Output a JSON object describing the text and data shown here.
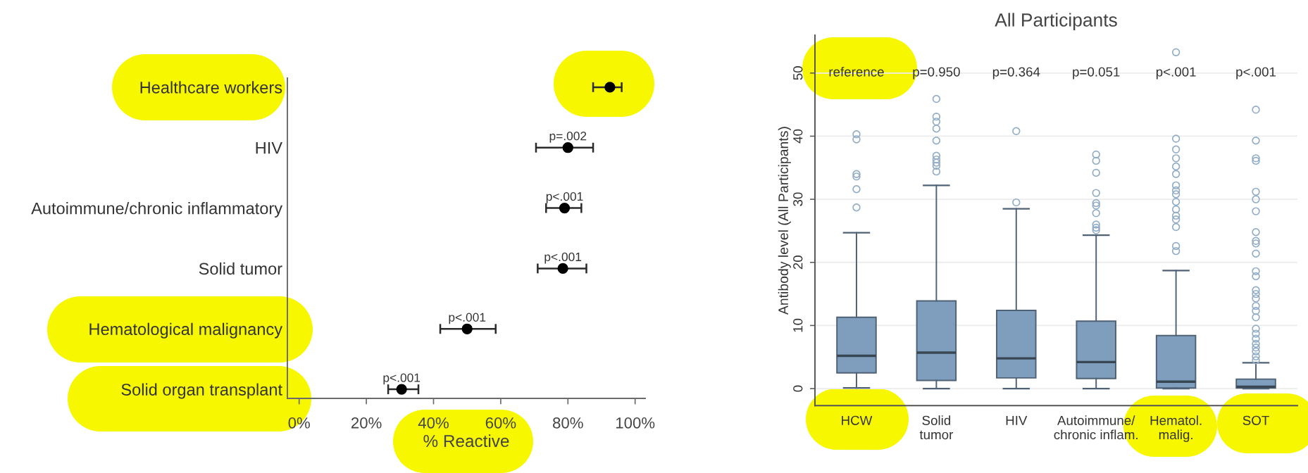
{
  "chart_data": [
    {
      "type": "scatter",
      "orientation": "horizontal",
      "categories": [
        "Healthcare workers",
        "HIV",
        "Autoimmune/chronic inflammatory",
        "Solid tumor",
        "Hematological malignancy",
        "Solid organ transplant"
      ],
      "values": [
        92.5,
        80,
        79,
        78.5,
        50,
        30.5
      ],
      "errors": [
        [
          87.5,
          96
        ],
        [
          70.5,
          87.5
        ],
        [
          73.5,
          84
        ],
        [
          71,
          85.5
        ],
        [
          42,
          58.5
        ],
        [
          26.5,
          35.5
        ]
      ],
      "color": "#000000",
      "marker": "circle",
      "xlabel": "% Reactive",
      "xlim": [
        -3.5,
        103
      ],
      "xticks": [
        {
          "value": 0,
          "label": "0%"
        },
        {
          "value": 20,
          "label": "20%"
        },
        {
          "value": 40,
          "label": "40%"
        },
        {
          "value": 60,
          "label": "60%"
        },
        {
          "value": 80,
          "label": "80%"
        },
        {
          "value": 100,
          "label": "100%"
        }
      ],
      "annotations": [
        {
          "text": "p=.002",
          "x": 80,
          "y": "HIV"
        },
        {
          "text": "p<.001",
          "x": 79,
          "y": "Autoimmune/chronic inflammatory"
        },
        {
          "text": "p<.001",
          "x": 78.5,
          "y": "Solid tumor"
        },
        {
          "text": "p<.001",
          "x": 50,
          "y": "Hematological malignancy"
        },
        {
          "text": "p<.001",
          "x": 30.5,
          "y": "Solid organ transplant"
        }
      ]
    },
    {
      "type": "box",
      "title": "All Participants",
      "ylabel": "Antibody level (All Participants)",
      "categories": [
        "HCW",
        "Solid\ntumor",
        "HIV",
        "Autoimmune/\nchronic inflam.",
        "Hematol.\nmalig.",
        "SOT"
      ],
      "boxes": [
        {
          "low": 0.1,
          "q1": 2.5,
          "median": 5.2,
          "q3": 11.3,
          "high": 24.7,
          "outliers": [
            40.3,
            39.5,
            34.0,
            33.6,
            31.6,
            28.7
          ]
        },
        {
          "low": 0,
          "q1": 1.3,
          "median": 5.7,
          "q3": 13.9,
          "high": 32.2,
          "outliers": [
            45.9,
            43.1,
            42.3,
            41.2,
            39.3,
            36.9,
            36.3,
            35.8,
            35.3,
            34.4
          ]
        },
        {
          "low": 0,
          "q1": 1.7,
          "median": 4.8,
          "q3": 12.4,
          "high": 28.5,
          "outliers": [
            40.8,
            29.5
          ]
        },
        {
          "low": 0,
          "q1": 1.6,
          "median": 4.2,
          "q3": 10.7,
          "high": 24.3,
          "outliers": [
            37.1,
            36.1,
            34.2,
            31.0,
            29.4,
            29.0,
            27.8,
            26.0,
            25.5,
            25.1
          ]
        },
        {
          "low": 0,
          "q1": 0.1,
          "median": 1.1,
          "q3": 8.4,
          "high": 18.7,
          "outliers": [
            53.3,
            39.6,
            37.9,
            36.5,
            35.2,
            34.0,
            32.2,
            31.4,
            30.8,
            29.6,
            28.4,
            27.4,
            26.8,
            25.6,
            22.6,
            21.8
          ]
        },
        {
          "low": 0,
          "q1": 0.1,
          "median": 0.3,
          "q3": 1.5,
          "high": 4.1,
          "outliers": [
            44.2,
            39.3,
            36.5,
            36.1,
            31.2,
            30.0,
            28.1,
            24.8,
            23.4,
            23.0,
            21.4,
            18.6,
            17.8,
            15.6,
            15.0,
            14.3,
            13.1,
            12.3,
            11.3,
            9.5,
            8.7,
            7.9,
            7.1,
            6.5,
            5.9,
            5.1,
            4.5
          ]
        }
      ],
      "color": "#7f9ebd",
      "ylim": [
        -2.7,
        56
      ],
      "yticks": [
        0,
        10,
        20,
        30,
        40,
        50
      ],
      "grid": "y",
      "annotations": [
        "reference",
        "p=0.950",
        "p=0.364",
        "p=0.051",
        "p<.001",
        "p<.001"
      ]
    }
  ]
}
